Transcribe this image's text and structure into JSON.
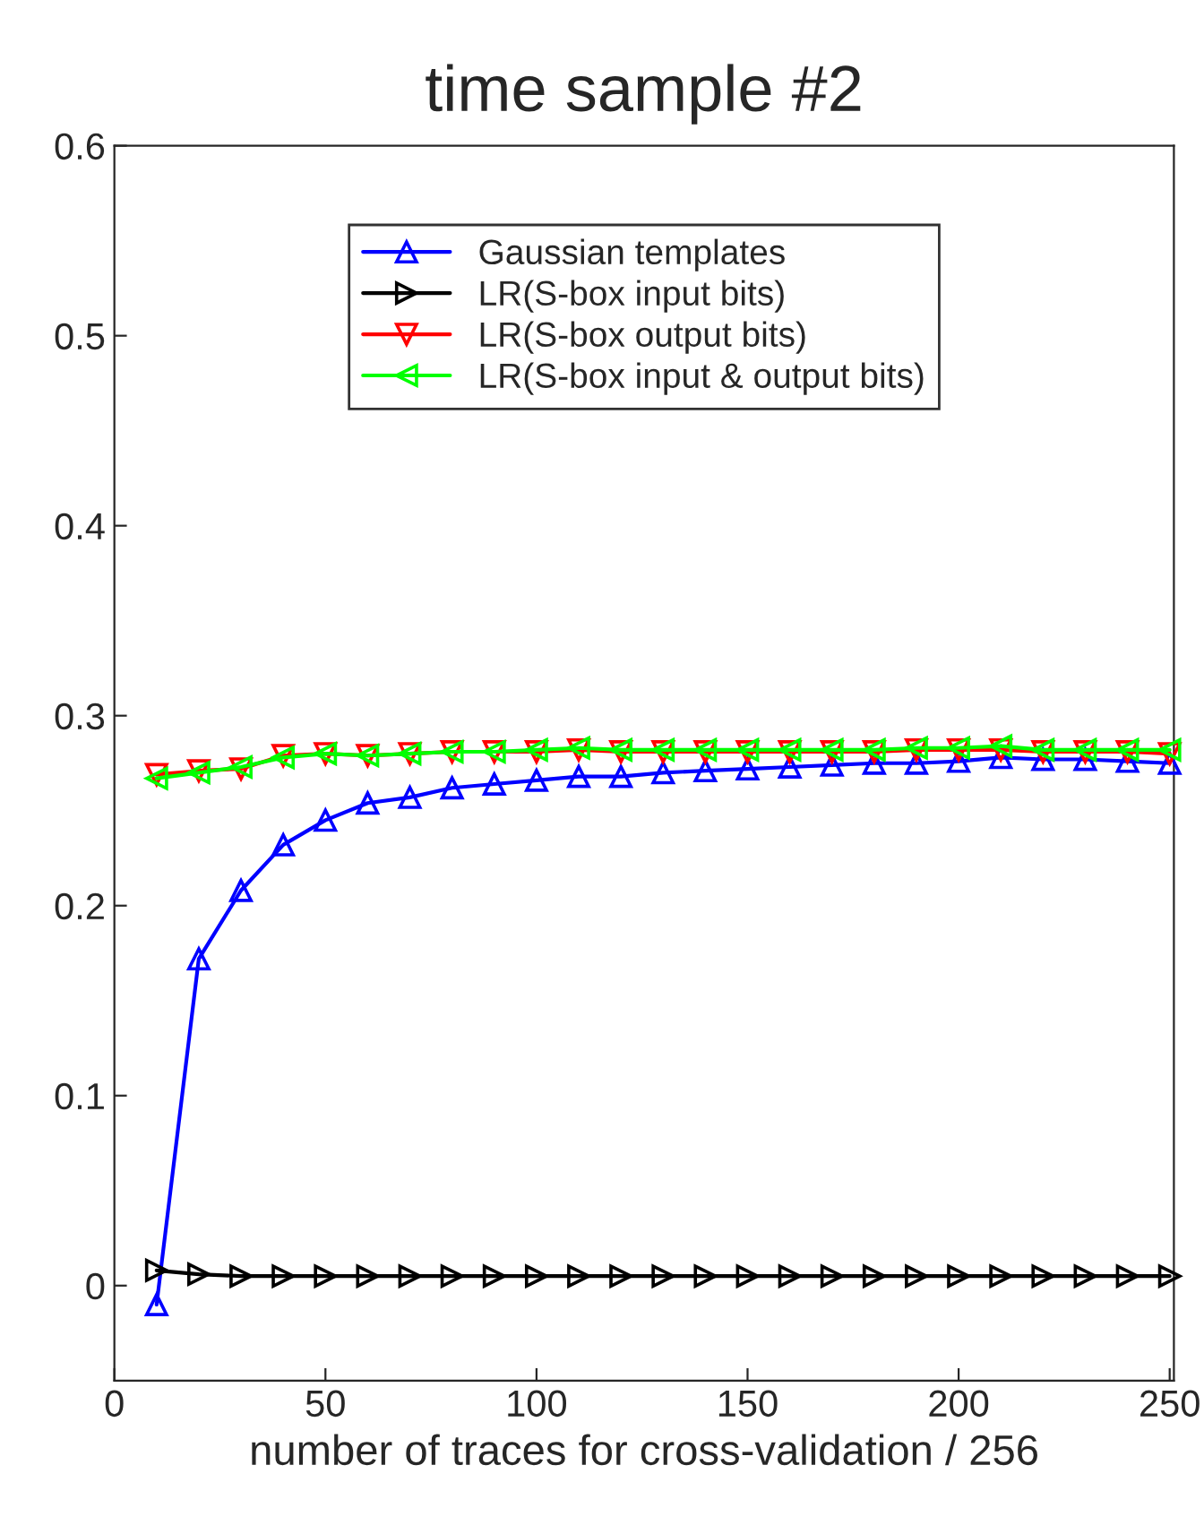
{
  "chart_data": {
    "type": "line",
    "title": "time sample #2",
    "xlabel": "number of traces for cross-validation / 256",
    "x": [
      10,
      20,
      30,
      40,
      50,
      60,
      70,
      80,
      90,
      100,
      110,
      120,
      130,
      140,
      150,
      160,
      170,
      180,
      190,
      200,
      210,
      220,
      230,
      240,
      250
    ],
    "series": [
      {
        "name": "Gaussian templates",
        "color": "#0000ff",
        "marker": "triangle_up",
        "values": [
          -0.01,
          0.172,
          0.208,
          0.232,
          0.245,
          0.254,
          0.257,
          0.262,
          0.264,
          0.266,
          0.268,
          0.268,
          0.27,
          0.271,
          0.272,
          0.273,
          0.274,
          0.275,
          0.275,
          0.276,
          0.278,
          0.277,
          0.277,
          0.276,
          0.275
        ]
      },
      {
        "name": "LR(S-box input bits)",
        "color": "#000000",
        "marker": "triangle_right",
        "values": [
          0.008,
          0.006,
          0.005,
          0.005,
          0.005,
          0.005,
          0.005,
          0.005,
          0.005,
          0.005,
          0.005,
          0.005,
          0.005,
          0.005,
          0.005,
          0.005,
          0.005,
          0.005,
          0.005,
          0.005,
          0.005,
          0.005,
          0.005,
          0.005,
          0.005
        ]
      },
      {
        "name": "LR(S-box output bits)",
        "color": "#ff0000",
        "marker": "triangle_down",
        "values": [
          0.269,
          0.271,
          0.272,
          0.279,
          0.28,
          0.279,
          0.28,
          0.281,
          0.281,
          0.281,
          0.282,
          0.281,
          0.281,
          0.281,
          0.281,
          0.281,
          0.281,
          0.281,
          0.282,
          0.282,
          0.282,
          0.281,
          0.281,
          0.281,
          0.28
        ]
      },
      {
        "name": "LR(S-box input & output bits)",
        "color": "#00ff00",
        "marker": "triangle_left",
        "values": [
          0.267,
          0.27,
          0.273,
          0.278,
          0.28,
          0.279,
          0.28,
          0.281,
          0.281,
          0.282,
          0.283,
          0.282,
          0.282,
          0.282,
          0.282,
          0.282,
          0.282,
          0.282,
          0.283,
          0.283,
          0.284,
          0.282,
          0.282,
          0.282,
          0.282
        ]
      }
    ],
    "xlim": [
      0,
      251
    ],
    "xticks": [
      0,
      50,
      100,
      150,
      200,
      250
    ],
    "ylim": [
      -0.05,
      0.6
    ],
    "yticks": [
      0,
      0.1,
      0.2,
      0.3,
      0.4,
      0.5,
      0.6
    ],
    "legend": "top",
    "grid": false,
    "line_style": "solid"
  }
}
